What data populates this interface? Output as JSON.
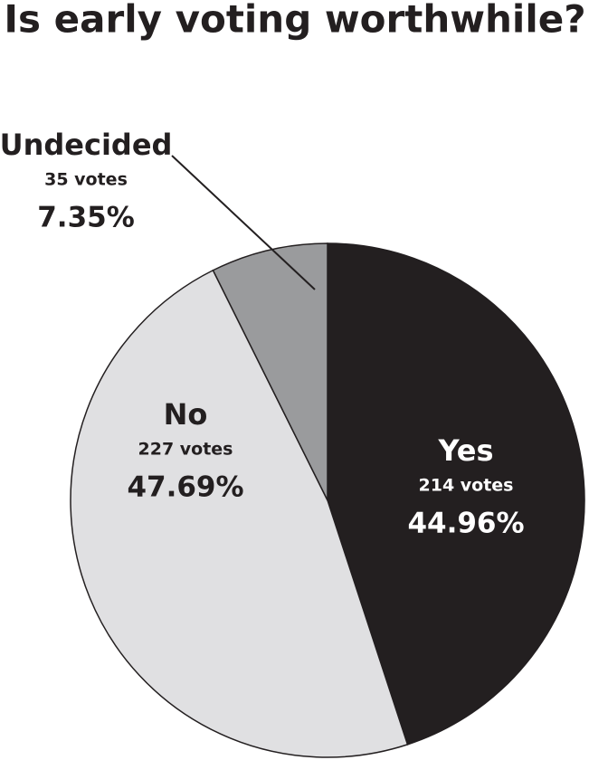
{
  "chart_data": {
    "type": "pie",
    "title": "Is early voting worthwhile?",
    "categories": [
      "Yes",
      "No",
      "Undecided"
    ],
    "values": [
      44.96,
      47.69,
      7.35
    ],
    "value_labels": [
      "44.96%",
      "47.69%",
      "7.35%"
    ],
    "vote_labels": [
      "214 votes",
      "227 votes",
      "35 votes"
    ],
    "colors": [
      "#231f20",
      "#e0e0e2",
      "#9a9b9d"
    ]
  }
}
